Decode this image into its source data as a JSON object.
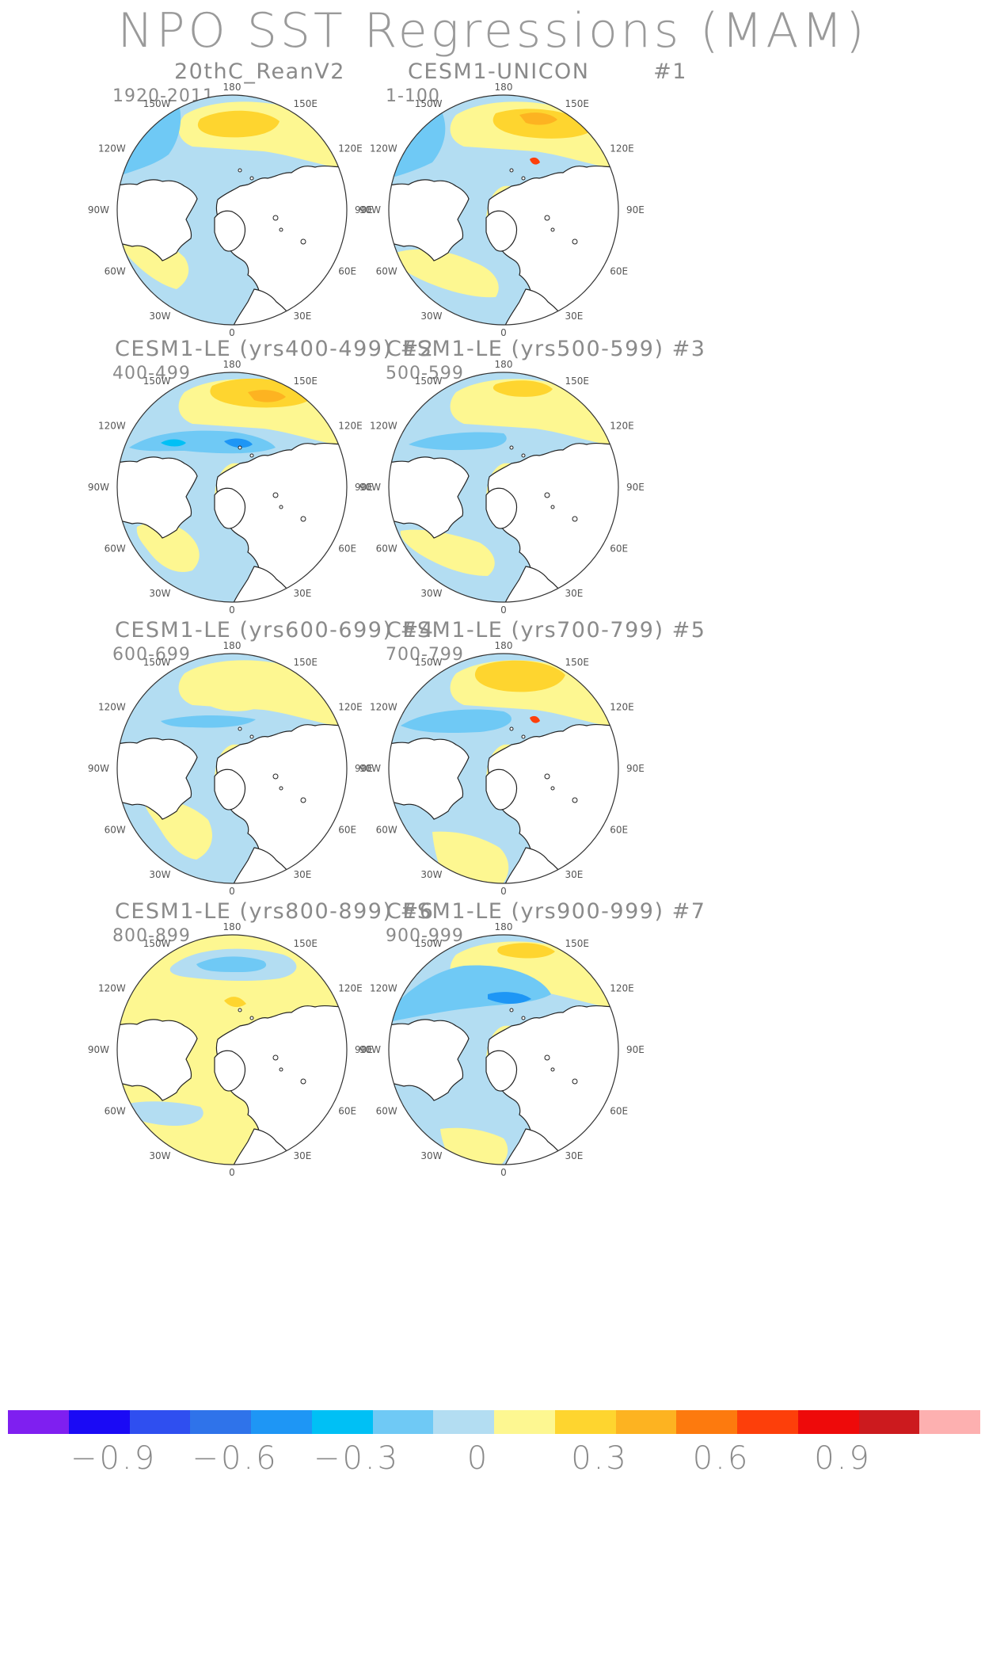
{
  "title": "NPO SST Regressions (MAM)",
  "panels": [
    {
      "title": "20thC_ReanV2",
      "tag": "",
      "period": "1920-2011",
      "pattern": 0
    },
    {
      "title": "CESM1-UNICON",
      "tag": "#1",
      "period": "1-100",
      "pattern": 1
    },
    {
      "title": "CESM1-LE (yrs400-499)",
      "tag": "#2",
      "period": "400-499",
      "pattern": 2
    },
    {
      "title": "CESM1-LE (yrs500-599)",
      "tag": "#3",
      "period": "500-599",
      "pattern": 3
    },
    {
      "title": "CESM1-LE (yrs600-699)",
      "tag": "#4",
      "period": "600-699",
      "pattern": 4
    },
    {
      "title": "CESM1-LE (yrs700-799)",
      "tag": "#5",
      "period": "700-799",
      "pattern": 5
    },
    {
      "title": "CESM1-LE (yrs800-899)",
      "tag": "#6",
      "period": "800-899",
      "pattern": 6
    },
    {
      "title": "CESM1-LE (yrs900-999)",
      "tag": "#7",
      "period": "900-999",
      "pattern": 7
    }
  ],
  "lon_labels": {
    "180": "180",
    "150E": "150E",
    "120E": "120E",
    "90E": "90E",
    "60E": "60E",
    "30E": "30E",
    "0": "0",
    "30W": "30W",
    "60W": "60W",
    "90W": "90W",
    "120W": "120W",
    "150W": "150W"
  },
  "colorbar": {
    "colors": [
      "#7f1ff0",
      "#1a0af5",
      "#2f4ff0",
      "#2f73ea",
      "#1e96f5",
      "#00c0f5",
      "#6fc9f5",
      "#b3ddf2",
      "#fdf791",
      "#fed52f",
      "#fdb321",
      "#fd7a0e",
      "#fd3f0a",
      "#ee0a0a",
      "#cc1a1e",
      "#fdb0b0"
    ],
    "labels": [
      "−0.9",
      "−0.6",
      "−0.3",
      "0",
      "0.3",
      "0.6",
      "0.9"
    ]
  }
}
